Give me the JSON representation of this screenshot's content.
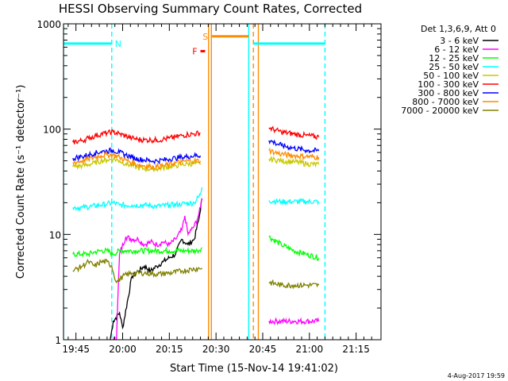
{
  "chart_data": {
    "type": "line",
    "title": "HESSI Observing Summary Count Rates, Corrected",
    "xlabel": "Start Time (15-Nov-14 19:41:02)",
    "ylabel": "Corrected Count Rate (s⁻¹ detector⁻¹)",
    "yscale": "log",
    "ylim": [
      1,
      1000
    ],
    "xlim_minutes": [
      -4,
      98
    ],
    "x_tick_labels": [
      "19:45",
      "20:00",
      "20:15",
      "20:30",
      "20:45",
      "21:00",
      "21:15"
    ],
    "x_tick_minutes": [
      0,
      15,
      30,
      45,
      60,
      75,
      90
    ],
    "y_tick_labels": [
      "1",
      "10",
      "100",
      "1000"
    ],
    "y_tick_values": [
      1,
      10,
      100,
      1000
    ],
    "legend_header": "Det 1,3,6,9, Att 0",
    "legend_position": "right",
    "data_gap_minutes": [
      42.5,
      57.5
    ],
    "series": [
      {
        "name": "3 - 6 keV",
        "color": "#000000",
        "x": [
          11,
          12,
          14,
          15,
          18,
          20,
          22,
          24,
          26,
          28,
          30,
          32,
          34,
          36,
          38,
          39.5,
          40.5
        ],
        "y": [
          1,
          1.5,
          1.8,
          1.3,
          4,
          4.5,
          5,
          4.5,
          5,
          5.5,
          6,
          6.5,
          9,
          8,
          9,
          14,
          22
        ]
      },
      {
        "name": "6 - 12 keV",
        "color": "#ff00ff",
        "x": [
          12,
          13,
          14,
          16,
          18,
          20,
          22,
          24,
          26,
          28,
          30,
          32,
          34,
          35,
          36,
          37,
          38,
          39,
          40,
          40.5,
          62,
          64,
          66,
          70,
          74,
          78
        ],
        "y": [
          1,
          1,
          6.5,
          9.5,
          9,
          9,
          8,
          8.5,
          8,
          8.5,
          8,
          9,
          11,
          15,
          10,
          11,
          12,
          14,
          18,
          22,
          1.5,
          1.5,
          1.5,
          1.5,
          1.5,
          1.5
        ]
      },
      {
        "name": "12 - 25 keV",
        "color": "#00ff00",
        "x": [
          -1,
          2,
          4,
          6,
          8,
          10,
          12,
          14,
          16,
          20,
          25,
          30,
          35,
          39,
          40.5,
          62,
          66,
          70,
          74,
          78
        ],
        "y": [
          6.5,
          6.5,
          6.5,
          6.8,
          7,
          7,
          6.5,
          7,
          7,
          7,
          7,
          7,
          7,
          7,
          7.5,
          9.5,
          8,
          7,
          6.5,
          6
        ]
      },
      {
        "name": "25 - 50 keV",
        "color": "#00ffff",
        "x": [
          -1,
          2,
          5,
          8,
          10,
          12,
          14,
          18,
          22,
          26,
          30,
          34,
          38,
          40,
          40.5,
          62,
          66,
          70,
          74,
          78
        ],
        "y": [
          18,
          18,
          18.5,
          19,
          19.5,
          20,
          19,
          19,
          19,
          18.5,
          19,
          19.5,
          20,
          24,
          28,
          21,
          20.5,
          20.5,
          20.5,
          20.5
        ]
      },
      {
        "name": "50 - 100 keV",
        "color": "#c8c800",
        "x": [
          -1,
          2,
          4,
          6,
          8,
          10,
          12,
          14,
          16,
          18,
          20,
          22,
          24,
          26,
          28,
          30,
          32,
          34,
          36,
          38,
          40,
          62,
          64,
          66,
          70,
          74,
          78
        ],
        "y": [
          44,
          45,
          46,
          48,
          50,
          51,
          52,
          50,
          47,
          45,
          43,
          42,
          42,
          42,
          43,
          44,
          45,
          46,
          47,
          47,
          46,
          52,
          51,
          50,
          49,
          47,
          46
        ]
      },
      {
        "name": "100 - 300 keV",
        "color": "#ff0000",
        "x": [
          -1,
          2,
          4,
          6,
          8,
          10,
          12,
          14,
          16,
          18,
          20,
          22,
          24,
          26,
          28,
          30,
          32,
          34,
          36,
          38,
          40,
          62,
          64,
          66,
          70,
          74,
          78
        ],
        "y": [
          75,
          78,
          82,
          86,
          90,
          92,
          94,
          90,
          86,
          82,
          80,
          79,
          79,
          79,
          80,
          82,
          84,
          87,
          89,
          90,
          92,
          103,
          98,
          94,
          90,
          87,
          84
        ]
      },
      {
        "name": "300 - 800 keV",
        "color": "#0000ff",
        "x": [
          -1,
          2,
          4,
          6,
          8,
          10,
          12,
          14,
          16,
          18,
          20,
          22,
          24,
          26,
          28,
          30,
          32,
          34,
          36,
          38,
          40,
          62,
          64,
          66,
          70,
          74,
          78
        ],
        "y": [
          53,
          55,
          57,
          59,
          61,
          62,
          63,
          60,
          57,
          54,
          52,
          51,
          50,
          50,
          51,
          52,
          53,
          54,
          55,
          56,
          56,
          78,
          74,
          70,
          66,
          63,
          62
        ]
      },
      {
        "name": "800 - 7000 keV",
        "color": "#ff8c00",
        "x": [
          -1,
          2,
          4,
          6,
          8,
          10,
          12,
          14,
          16,
          18,
          20,
          22,
          24,
          26,
          28,
          30,
          32,
          34,
          36,
          38,
          40,
          62,
          64,
          66,
          70,
          74,
          78
        ],
        "y": [
          48,
          50,
          52,
          54,
          56,
          57,
          57,
          54,
          51,
          48,
          46,
          45,
          44,
          44,
          45,
          46,
          48,
          49,
          50,
          50,
          50,
          63,
          60,
          58,
          56,
          55,
          54
        ]
      },
      {
        "name": "7000 - 20000 keV",
        "color": "#808000",
        "x": [
          -1,
          2,
          4,
          6,
          8,
          10,
          11.5,
          13,
          15,
          18,
          22,
          26,
          30,
          34,
          38,
          40.5,
          62,
          66,
          70,
          74,
          78
        ],
        "y": [
          4.5,
          5,
          5.5,
          5,
          5.5,
          5.5,
          5,
          3.5,
          4,
          4.3,
          4.3,
          4.2,
          4.3,
          4.5,
          4.7,
          4.8,
          3.5,
          3.3,
          3.3,
          3.3,
          3.3
        ]
      }
    ],
    "markers": [
      {
        "label": "N",
        "color": "#00ffff",
        "x_start": -4,
        "x_end": 11.5,
        "y": 650
      },
      {
        "label": "S",
        "color": "#ff8c00",
        "x_start": 43.5,
        "x_end": 55.5,
        "y": 760
      },
      {
        "label": "F",
        "color": "#ff0000",
        "x_start": 40,
        "x_end": 41.5,
        "y": 550
      },
      {
        "label": "",
        "color": "#00ffff",
        "x_start": 57,
        "x_end": 80,
        "y": 650
      }
    ],
    "vertical_lines": [
      {
        "x": -4,
        "color": "#00ffff",
        "style": "solid"
      },
      {
        "x": 11.5,
        "color": "#00ffff",
        "style": "dashed"
      },
      {
        "x": 42.6,
        "color": "#ff8c00",
        "style": "solid"
      },
      {
        "x": 43.5,
        "color": "#ff8c00",
        "style": "solid"
      },
      {
        "x": 55.5,
        "color": "#00ffff",
        "style": "solid"
      },
      {
        "x": 57.0,
        "color": "#ff8c00",
        "style": "dashed"
      },
      {
        "x": 58.6,
        "color": "#ff8c00",
        "style": "solid"
      },
      {
        "x": 80.0,
        "color": "#00ffff",
        "style": "dashed"
      }
    ]
  },
  "timestamp": "4-Aug-2017 19:59"
}
